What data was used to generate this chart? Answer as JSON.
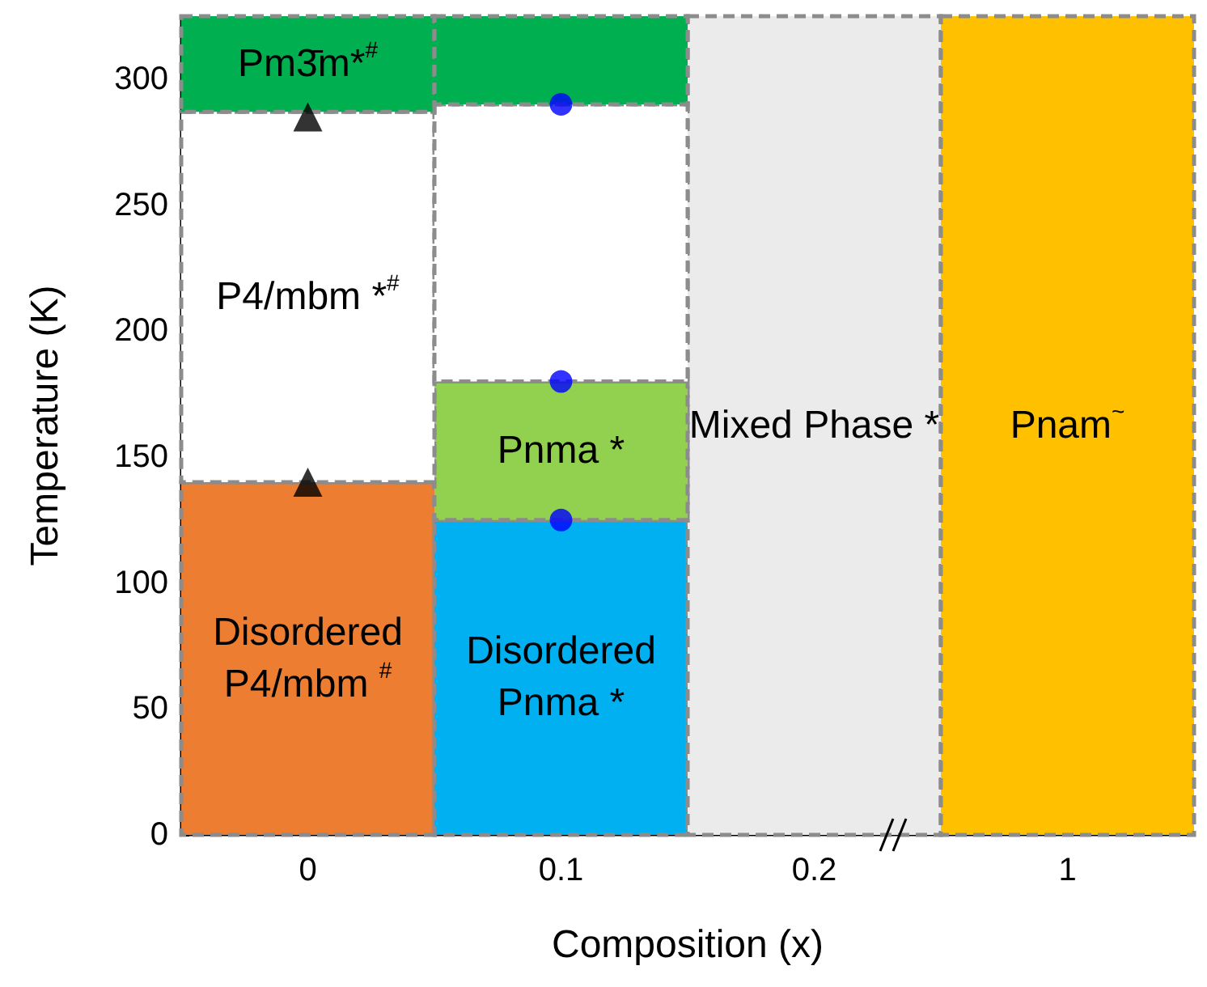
{
  "chart_data": {
    "type": "bar",
    "xlabel": "Composition (x)",
    "ylabel": "Temperature (K)",
    "categories": [
      "0",
      "0.1",
      "0.2",
      "1"
    ],
    "ylim": [
      0,
      325
    ],
    "yticks": [
      0,
      50,
      100,
      150,
      200,
      250,
      300
    ],
    "grid": false,
    "series": [
      {
        "values": [
          140,
          125,
          325,
          325
        ],
        "base": [
          0,
          0,
          0,
          0
        ],
        "colors": [
          "#ed7d31",
          "#00b0f0",
          "#ebebeb",
          "#ffc000"
        ],
        "value_labels": [
          "Disordered P4/mbm $^{#}$",
          "Disordered Pnma *",
          "Mixed Phase *",
          "Pnam$^{~}$"
        ]
      },
      {
        "values": [
          null,
          55,
          null,
          null
        ],
        "base": [
          null,
          125,
          null,
          null
        ],
        "color": "#92d050",
        "value_labels": [
          null,
          "Pnma *",
          null,
          null
        ]
      },
      {
        "values": [
          147,
          110,
          null,
          null
        ],
        "base": [
          140,
          180,
          null,
          null
        ],
        "color": "#ffffff",
        "value_labels": [
          "P4/mbm *$^{#}$",
          null,
          null,
          null
        ]
      },
      {
        "values": [
          38,
          35,
          null,
          null
        ],
        "base": [
          287,
          290,
          null,
          null
        ],
        "color": "#00b050",
        "value_labels": [
          "Pm3̄m*$^{#}$",
          null,
          null,
          null
        ]
      },
      {
        "type": "scatter",
        "marker": "triangle",
        "color": "#000000",
        "x": [
          "0",
          "0"
        ],
        "values": [
          285,
          140
        ]
      },
      {
        "type": "scatter",
        "marker": "circle",
        "color": "#0000ff",
        "x": [
          "0.1",
          "0.1",
          "0.1"
        ],
        "values": [
          290,
          180,
          125
        ]
      }
    ]
  }
}
